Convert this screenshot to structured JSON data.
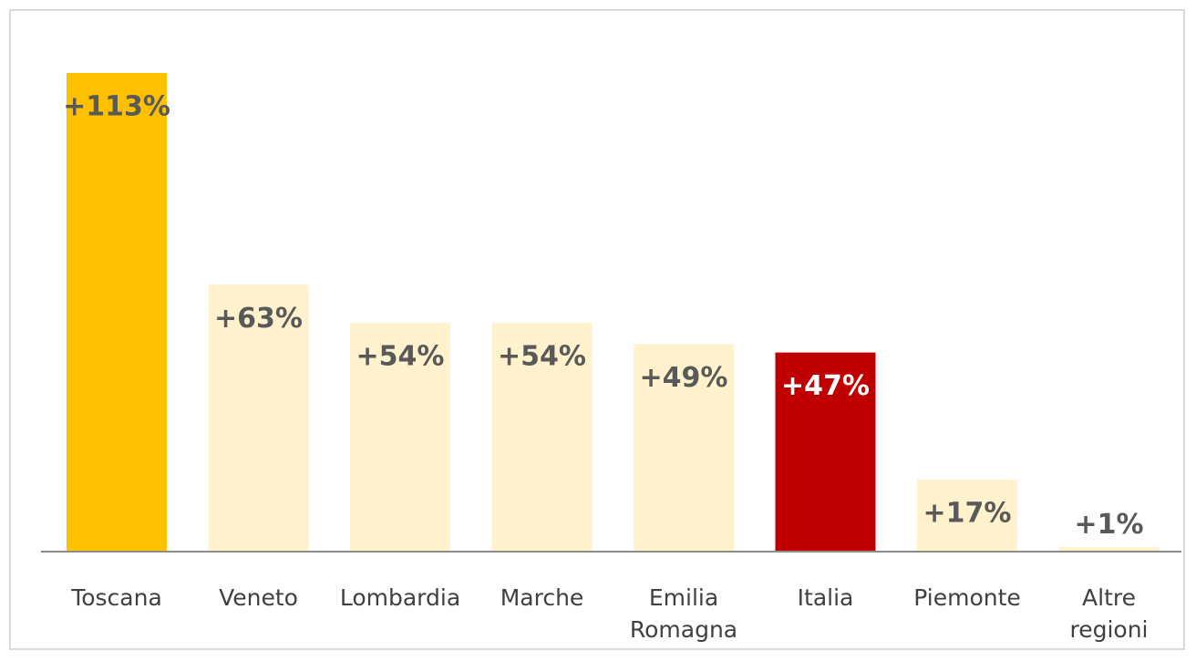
{
  "chart_data": {
    "type": "bar",
    "categories": [
      "Toscana",
      "Veneto",
      "Lombardia",
      "Marche",
      "Emilia Romagna",
      "Italia",
      "Piemonte",
      "Altre regioni"
    ],
    "values": [
      113,
      63,
      54,
      54,
      49,
      47,
      17,
      1
    ],
    "value_labels": [
      "+113%",
      "+63%",
      "+54%",
      "+54%",
      "+49%",
      "+47%",
      "+17%",
      "+1%"
    ],
    "colors": [
      "#FFC000",
      "#FFF2CC",
      "#FFF2CC",
      "#FFF2CC",
      "#FFF2CC",
      "#C00000",
      "#FFF2CC",
      "#FFF2CC"
    ]
  }
}
